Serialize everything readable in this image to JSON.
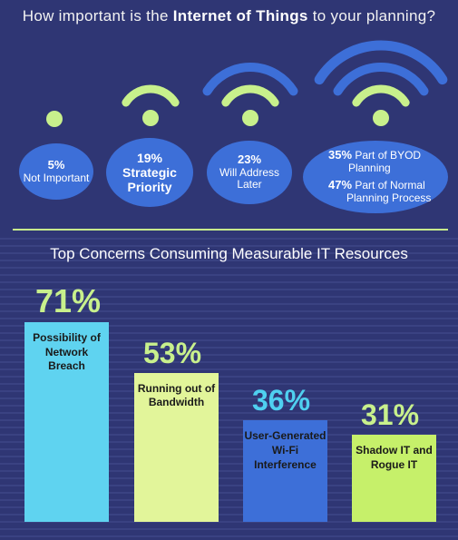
{
  "header": {
    "title_before": "How important is the",
    "title_bold": "Internet of Things",
    "title_after": "to your planning?"
  },
  "wifi_bubbles": [
    {
      "pct": "5%",
      "lines": [
        "Not Important"
      ]
    },
    {
      "pct": "19%",
      "lines": [
        "Strategic",
        "Priority"
      ]
    },
    {
      "pct": "23%",
      "lines": [
        "Will Address",
        "Later"
      ]
    },
    {
      "entries": [
        {
          "pct": "35%",
          "text1": "Part of BYOD",
          "text2": "Planning"
        },
        {
          "pct": "47%",
          "text1": "Part of Normal",
          "text2": "Planning Process"
        }
      ]
    }
  ],
  "chart_data": {
    "type": "bar",
    "title": "Top Concerns Consuming Measurable IT Resources",
    "categories": [
      "Possibility of Network Breach",
      "Running out of Bandwidth",
      "User-Generated Wi-Fi Interference",
      "Shadow IT and Rogue IT"
    ],
    "values": [
      71,
      53,
      36,
      31
    ],
    "value_labels": [
      "71%",
      "53%",
      "36%",
      "31%"
    ],
    "category_lines": [
      [
        "Possibility of",
        "Network",
        "Breach"
      ],
      [
        "Running out of",
        "Bandwidth"
      ],
      [
        "User-Generated",
        "Wi-Fi",
        "Interference"
      ],
      [
        "Shadow IT and",
        "Rogue IT"
      ]
    ],
    "colors": [
      "#5fd3f0",
      "#e2f59a",
      "#3d6fd8",
      "#c6f06a"
    ],
    "label_colors": [
      "#c8f08c",
      "#c8f08c",
      "#4fd0f0",
      "#c8f08c"
    ]
  },
  "colors": {
    "background": "#2f3674",
    "accent_green": "#c8f08c",
    "wifi_blue": "#3d6fd8"
  }
}
